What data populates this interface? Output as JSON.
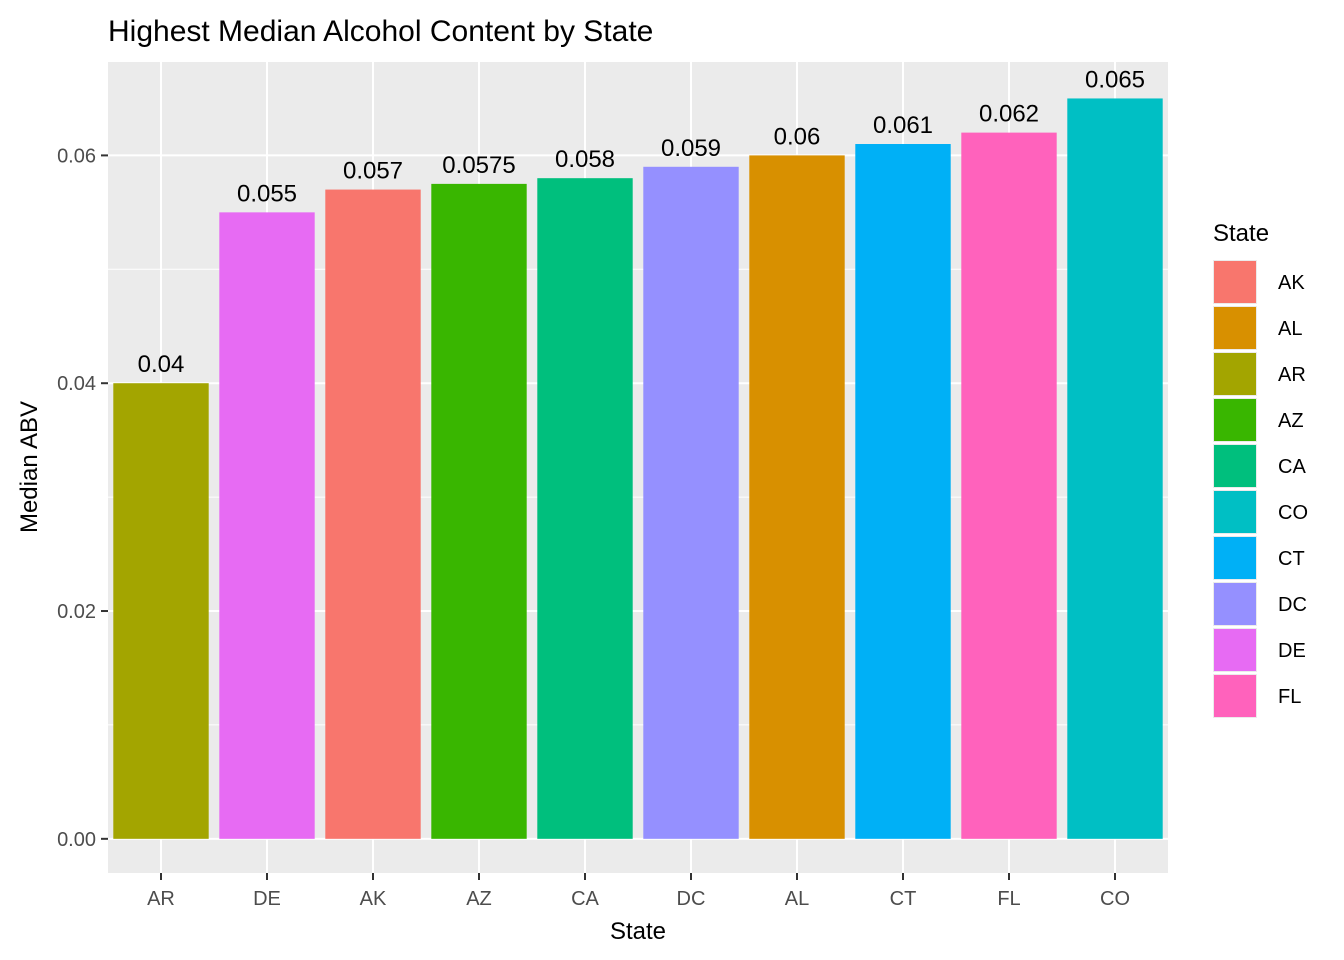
{
  "chart_data": {
    "type": "bar",
    "title": "Highest Median Alcohol Content by State",
    "xlabel": "State",
    "ylabel": "Median ABV",
    "categories": [
      "AR",
      "DE",
      "AK",
      "AZ",
      "CA",
      "DC",
      "AL",
      "CT",
      "FL",
      "CO"
    ],
    "values": [
      0.04,
      0.055,
      0.057,
      0.0575,
      0.058,
      0.059,
      0.06,
      0.061,
      0.062,
      0.065
    ],
    "value_labels": [
      "0.04",
      "0.055",
      "0.057",
      "0.0575",
      "0.058",
      "0.059",
      "0.06",
      "0.061",
      "0.062",
      "0.065"
    ],
    "ylim": [
      -0.003,
      0.0682
    ],
    "yticks": [
      0,
      0.02,
      0.04,
      0.06
    ],
    "ytick_labels": [
      "0.00",
      "0.02",
      "0.04",
      "0.06"
    ],
    "grid": true,
    "legend": {
      "title": "State",
      "placement": "right",
      "entries": [
        "AK",
        "AL",
        "AR",
        "AZ",
        "CA",
        "CO",
        "CT",
        "DC",
        "DE",
        "FL"
      ]
    },
    "colors": {
      "AK": "#F8766D",
      "AL": "#D89000",
      "AR": "#A3A500",
      "AZ": "#39B600",
      "CA": "#00BF7D",
      "CO": "#00BFC4",
      "CT": "#00B0F6",
      "DC": "#9590FF",
      "DE": "#E76BF3",
      "FL": "#FF62BC"
    },
    "panel_background": "#EBEBEB",
    "grid_color": "#FFFFFF"
  }
}
